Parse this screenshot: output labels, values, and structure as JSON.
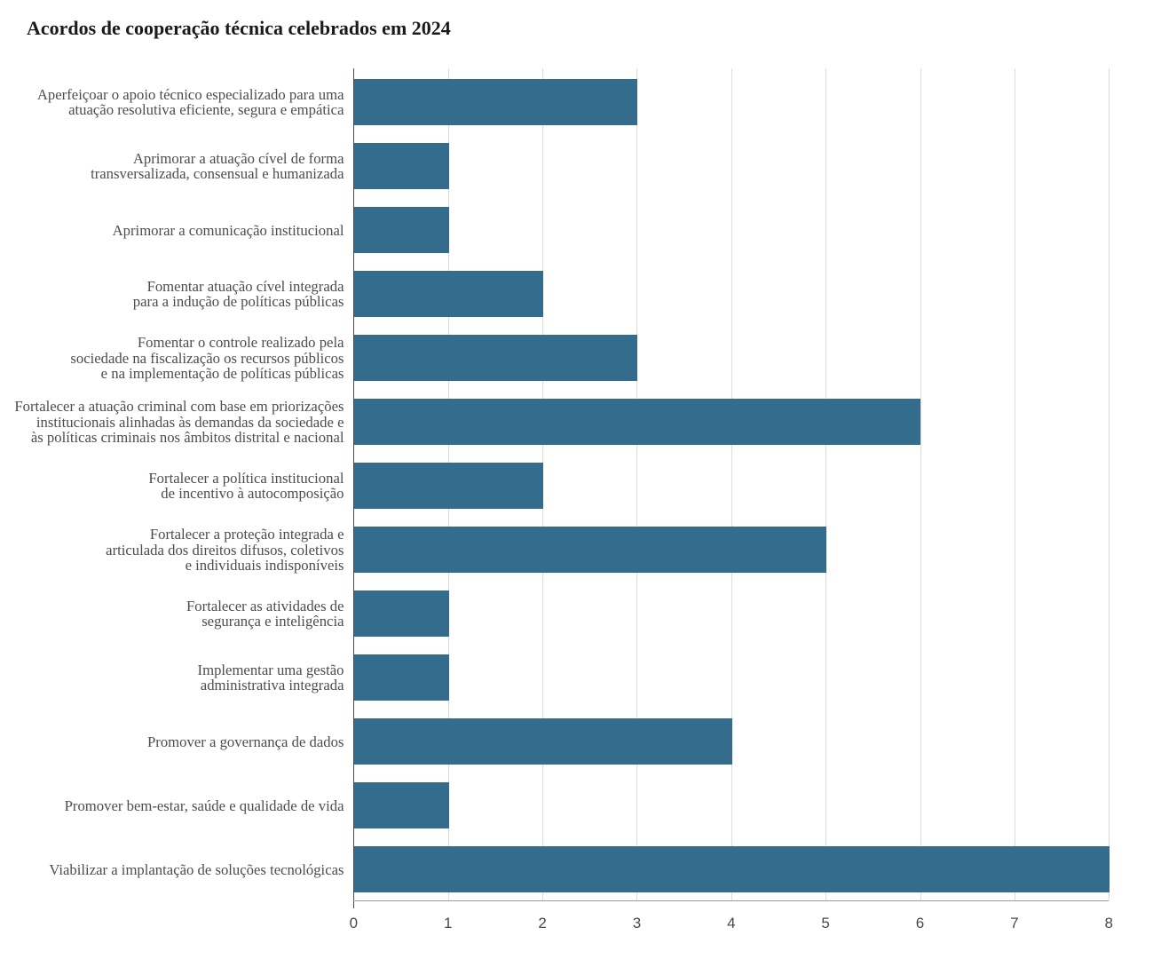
{
  "chart_data": {
    "type": "bar",
    "orientation": "horizontal",
    "title": "Acordos de cooperação técnica celebrados em 2024",
    "xlabel": "",
    "ylabel": "",
    "xlim": [
      0,
      8
    ],
    "x_ticks": [
      0,
      1,
      2,
      3,
      4,
      5,
      6,
      7,
      8
    ],
    "grid": true,
    "legend": false,
    "bar_color": "#346c8e",
    "categories": [
      "Aperfeiçoar o apoio técnico especializado para uma atuação resolutiva eficiente, segura e empática",
      "Aprimorar a atuação cível de forma transversalizada, consensual e humanizada",
      "Aprimorar a comunicação institucional",
      "Fomentar atuação cível integrada para a indução de políticas públicas",
      "Fomentar o controle realizado pela sociedade na fiscalização os recursos públicos e na implementação de políticas públicas",
      "Fortalecer a atuação criminal com base em priorizações institucionais alinhadas às demandas da sociedade e às políticas criminais nos âmbitos distrital e nacional",
      "Fortalecer a política institucional de incentivo à autocomposição",
      "Fortalecer a proteção integrada e articulada dos direitos difusos, coletivos e individuais indisponíveis",
      "Fortalecer as atividades de segurança e inteligência",
      "Implementar uma gestão administrativa integrada",
      "Promover a governança de dados",
      "Promover bem-estar, saúde e qualidade de vida",
      "Viabilizar a implantação de soluções tecnológicas"
    ],
    "label_lines": [
      [
        "Aperfeiçoar o apoio técnico especializado para uma",
        "atuação resolutiva eficiente, segura e empática"
      ],
      [
        "Aprimorar a atuação cível de forma",
        "transversalizada, consensual e humanizada"
      ],
      [
        "Aprimorar a comunicação institucional"
      ],
      [
        "Fomentar atuação cível integrada",
        "para a indução de políticas públicas"
      ],
      [
        "Fomentar o controle realizado pela",
        "sociedade na fiscalização os recursos públicos",
        "e na implementação de políticas públicas"
      ],
      [
        "Fortalecer a atuação criminal com base em priorizações",
        "institucionais alinhadas às demandas da sociedade e",
        "às políticas criminais nos âmbitos distrital e nacional"
      ],
      [
        "Fortalecer a política institucional",
        "de incentivo à autocomposição"
      ],
      [
        "Fortalecer a proteção integrada e",
        "articulada dos direitos difusos, coletivos",
        "e individuais indisponíveis"
      ],
      [
        "Fortalecer as atividades de",
        "segurança e inteligência"
      ],
      [
        "Implementar uma gestão",
        "administrativa integrada"
      ],
      [
        "Promover a governança de dados"
      ],
      [
        "Promover bem-estar, saúde e qualidade de vida"
      ],
      [
        "Viabilizar a implantação de soluções tecnológicas"
      ]
    ],
    "values": [
      3,
      1,
      1,
      2,
      3,
      6,
      2,
      5,
      1,
      1,
      4,
      1,
      8
    ]
  }
}
